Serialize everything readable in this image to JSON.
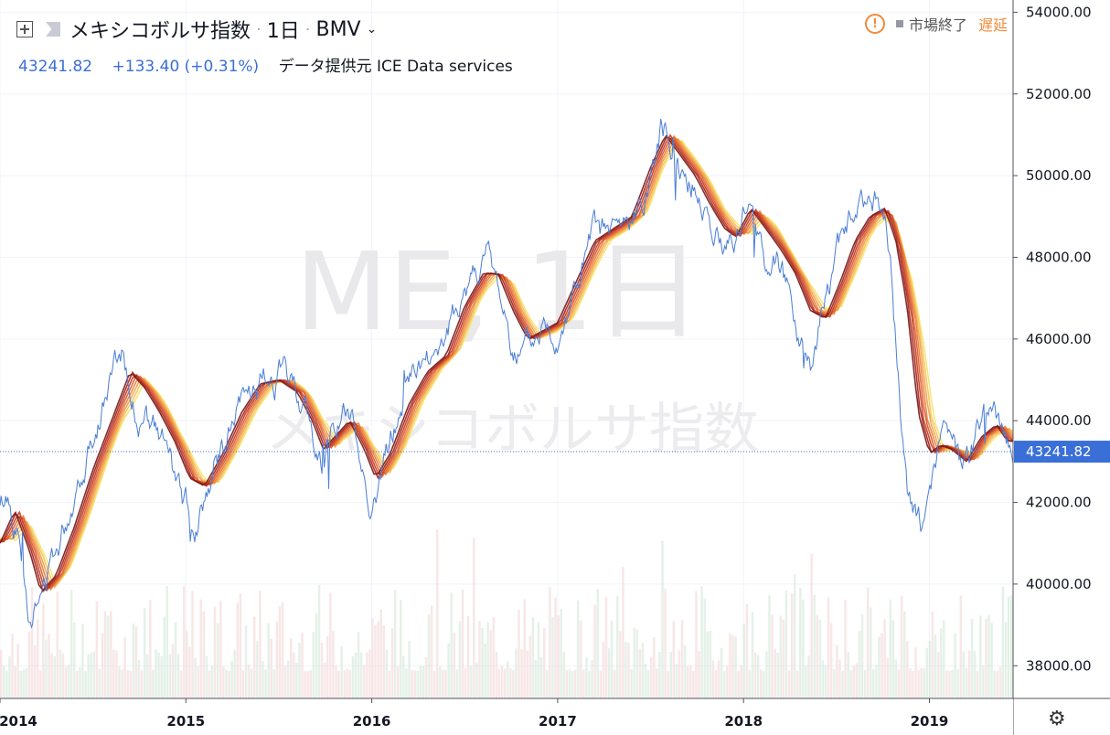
{
  "header": {
    "symbol_name": "メキシコボルサ指数",
    "interval": "1日",
    "exchange": "BMV"
  },
  "subheader": {
    "price": "43241.82",
    "change": "+133.40 (+0.31%)",
    "provider": "データ提供元 ICE Data services"
  },
  "status": {
    "market": "市場終了",
    "delay": "遅延"
  },
  "watermark": {
    "line1": "ME, 1日",
    "line2": "メキシコボルサ指数"
  },
  "colors": {
    "price_line": "#4a7ed6",
    "last_price_label": "#3a6fd8",
    "ribbon_dark": "#8b1a1a",
    "ribbon_light": "#f6e36a",
    "warning": "#f08b3a"
  },
  "chart_data": {
    "type": "line",
    "title": "",
    "xlabel": "",
    "ylabel": "",
    "ylim": [
      37200,
      54300
    ],
    "xlim": [
      2014.0,
      2019.45
    ],
    "y_ticks": [
      "38000.00",
      "40000.00",
      "42000.00",
      "44000.00",
      "46000.00",
      "48000.00",
      "50000.00",
      "52000.00",
      "54000.00"
    ],
    "x_ticks": [
      "2014",
      "2015",
      "2016",
      "2017",
      "2018",
      "2019"
    ],
    "last_price": 43241.82,
    "last_price_label": "43241.82",
    "series": [
      {
        "x": [
          2014.0,
          2014.04,
          2014.1,
          2014.16,
          2014.22,
          2014.28,
          2014.34,
          2014.42,
          2014.5,
          2014.58,
          2014.66,
          2014.72,
          2014.78,
          2014.84,
          2014.9,
          2014.96,
          2015.0,
          2015.05,
          2015.1,
          2015.16,
          2015.22,
          2015.28,
          2015.34,
          2015.42,
          2015.5,
          2015.58,
          2015.64,
          2015.7,
          2015.74,
          2015.78,
          2015.84,
          2015.9,
          2015.96,
          2016.0,
          2016.04,
          2016.1,
          2016.16,
          2016.22,
          2016.28,
          2016.34,
          2016.42,
          2016.5,
          2016.56,
          2016.62,
          2016.68,
          2016.74,
          2016.8,
          2016.86,
          2016.92,
          2017.0,
          2017.06,
          2017.12,
          2017.2,
          2017.28,
          2017.36,
          2017.42,
          2017.5,
          2017.56,
          2017.62,
          2017.68,
          2017.74,
          2017.8,
          2017.86,
          2017.9,
          2017.96,
          2018.0,
          2018.06,
          2018.12,
          2018.18,
          2018.24,
          2018.3,
          2018.36,
          2018.42,
          2018.48,
          2018.54,
          2018.6,
          2018.66,
          2018.72,
          2018.76,
          2018.8,
          2018.84,
          2018.88,
          2018.92,
          2018.96,
          2019.0,
          2019.04,
          2019.08,
          2019.12,
          2019.18,
          2019.24,
          2019.3,
          2019.36,
          2019.42
        ],
        "values": [
          41800,
          42200,
          41200,
          39300,
          39600,
          40500,
          41400,
          42600,
          43800,
          44800,
          45700,
          44400,
          44000,
          43600,
          43200,
          42100,
          41800,
          41500,
          42200,
          43000,
          43500,
          44100,
          44600,
          44900,
          45100,
          44800,
          44400,
          43200,
          42800,
          43500,
          44300,
          43900,
          42600,
          42000,
          42400,
          43500,
          44300,
          45100,
          45400,
          45700,
          46200,
          47300,
          47800,
          48000,
          47200,
          46200,
          45600,
          45700,
          46300,
          46200,
          47000,
          47500,
          48500,
          48500,
          48600,
          49000,
          50100,
          51300,
          50800,
          50000,
          49800,
          49200,
          48500,
          48200,
          48700,
          49200,
          48800,
          47800,
          48200,
          47000,
          46000,
          45500,
          46600,
          47700,
          48600,
          49000,
          49200,
          49500,
          48600,
          47200,
          44500,
          42200,
          41800,
          41300,
          42600,
          43200,
          43500,
          43100,
          42800,
          43400,
          44500,
          44000,
          43240
        ]
      }
    ],
    "ribbon": {
      "count": 8,
      "x": [
        2014.0,
        2014.08,
        2014.16,
        2014.22,
        2014.3,
        2014.4,
        2014.5,
        2014.6,
        2014.7,
        2014.78,
        2014.86,
        2014.94,
        2015.02,
        2015.1,
        2015.2,
        2015.3,
        2015.4,
        2015.5,
        2015.6,
        2015.68,
        2015.74,
        2015.8,
        2015.88,
        2015.96,
        2016.02,
        2016.1,
        2016.2,
        2016.3,
        2016.4,
        2016.5,
        2016.6,
        2016.68,
        2016.76,
        2016.84,
        2016.92,
        2017.0,
        2017.1,
        2017.2,
        2017.3,
        2017.4,
        2017.5,
        2017.58,
        2017.66,
        2017.74,
        2017.82,
        2017.9,
        2017.96,
        2018.04,
        2018.12,
        2018.2,
        2018.28,
        2018.36,
        2018.44,
        2018.52,
        2018.6,
        2018.68,
        2018.76,
        2018.82,
        2018.88,
        2018.94,
        2019.0,
        2019.06,
        2019.12,
        2019.2,
        2019.28,
        2019.36,
        2019.42
      ],
      "values": [
        41000,
        41800,
        40800,
        39800,
        40200,
        41400,
        42800,
        44000,
        45200,
        44800,
        44200,
        43500,
        42600,
        42400,
        43200,
        44200,
        44900,
        45000,
        44700,
        44000,
        43300,
        43600,
        44000,
        43300,
        42600,
        43200,
        44400,
        45200,
        45600,
        46800,
        47600,
        47600,
        46700,
        46000,
        46200,
        46400,
        47400,
        48400,
        48700,
        49000,
        50200,
        51000,
        50500,
        50000,
        49300,
        48700,
        48500,
        49200,
        48700,
        48200,
        47600,
        46700,
        46500,
        47400,
        48400,
        49000,
        49200,
        48400,
        46800,
        44200,
        43200,
        43400,
        43300,
        43000,
        43600,
        43900,
        43500
      ]
    },
    "volume": {
      "count": 360,
      "ymax": 100,
      "base": 30
    }
  }
}
